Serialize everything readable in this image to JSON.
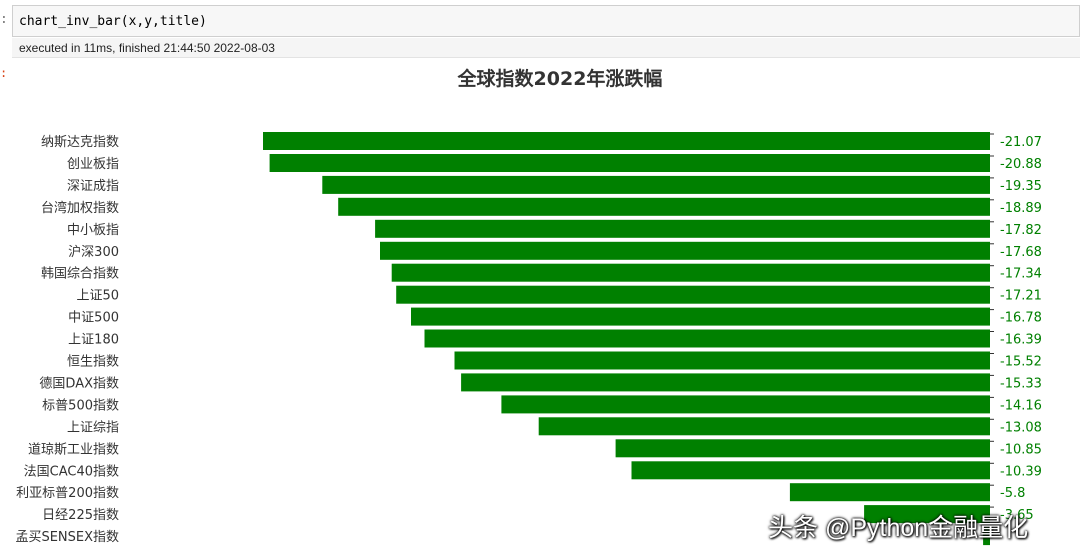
{
  "notebook": {
    "in_prompt": ":",
    "code": "chart_inv_bar(x,y,title)",
    "exec_info": "executed in 11ms, finished 21:44:50 2022-08-03",
    "out_prompt": ":"
  },
  "watermark": "头条 @Python金融量化",
  "chart_data": {
    "type": "bar",
    "orientation": "horizontal",
    "title": "全球指数2022年涨跌幅",
    "categories": [
      "纳斯达克指数",
      "创业板指",
      "深证成指",
      "台湾加权指数",
      "中小板指",
      "沪深300",
      "韩国综合指数",
      "上证50",
      "中证500",
      "上证180",
      "恒生指数",
      "德国DAX指数",
      "标普500指数",
      "上证综指",
      "道琼斯工业指数",
      "法国CAC40指数",
      "利亚标普200指数",
      "日经225指数",
      "孟买SENSEX指数"
    ],
    "values": [
      -21.07,
      -20.88,
      -19.35,
      -18.89,
      -17.82,
      -17.68,
      -17.34,
      -17.21,
      -16.78,
      -16.39,
      -15.52,
      -15.33,
      -14.16,
      -13.08,
      -10.85,
      -10.39,
      -5.8,
      -3.65,
      -0.2
    ],
    "labels": [
      "-21.07",
      "-20.88",
      "-19.35",
      "-18.89",
      "-17.82",
      "-17.68",
      "-17.34",
      "-17.21",
      "-16.78",
      "-16.39",
      "-15.52",
      "-15.33",
      "-14.16",
      "-13.08",
      "-10.85",
      "-10.39",
      "-5.8",
      "-3.65",
      ""
    ],
    "xlim": [
      -21.07,
      0
    ],
    "bar_color": "#008000",
    "label_color": "#008000",
    "grid": false,
    "legend": "none"
  }
}
